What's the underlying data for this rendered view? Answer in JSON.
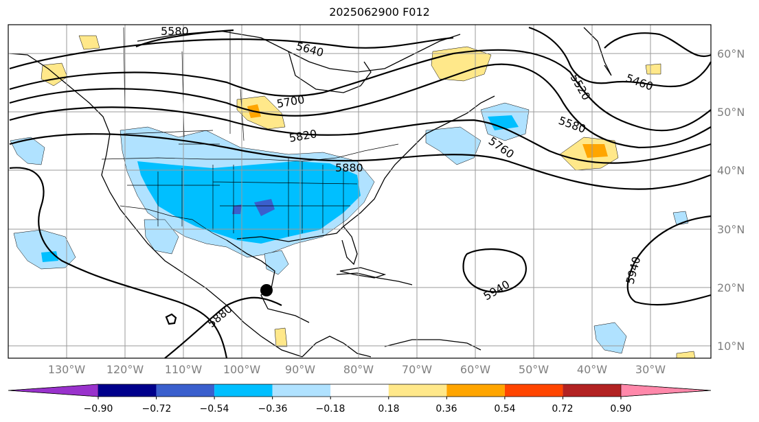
{
  "title": "2025062900 F012",
  "lon_labels": [
    "130°W",
    "120°W",
    "110°W",
    "100°W",
    "90°W",
    "80°W",
    "70°W",
    "60°W",
    "50°W",
    "40°W",
    "30°W"
  ],
  "lat_labels": [
    "60°N",
    "50°N",
    "40°N",
    "30°N",
    "20°N",
    "10°N"
  ],
  "colorbar": {
    "ticks": [
      "−0.90",
      "−0.72",
      "−0.54",
      "−0.36",
      "−0.18",
      "0.18",
      "0.36",
      "0.54",
      "0.72",
      "0.90"
    ],
    "colors": [
      "#9932CC",
      "#00008B",
      "#3A5FCD",
      "#00BFFF",
      "#B0E2FF",
      "#FFFFFF",
      "#FFE88A",
      "#FFA500",
      "#FF4500",
      "#B22222",
      "#FF88AA"
    ]
  },
  "contours": {
    "labels": [
      "5580",
      "5640",
      "5700",
      "5820",
      "5880",
      "5760",
      "5520",
      "5460",
      "5580",
      "5520",
      "5940",
      "5940",
      "5880"
    ]
  }
}
